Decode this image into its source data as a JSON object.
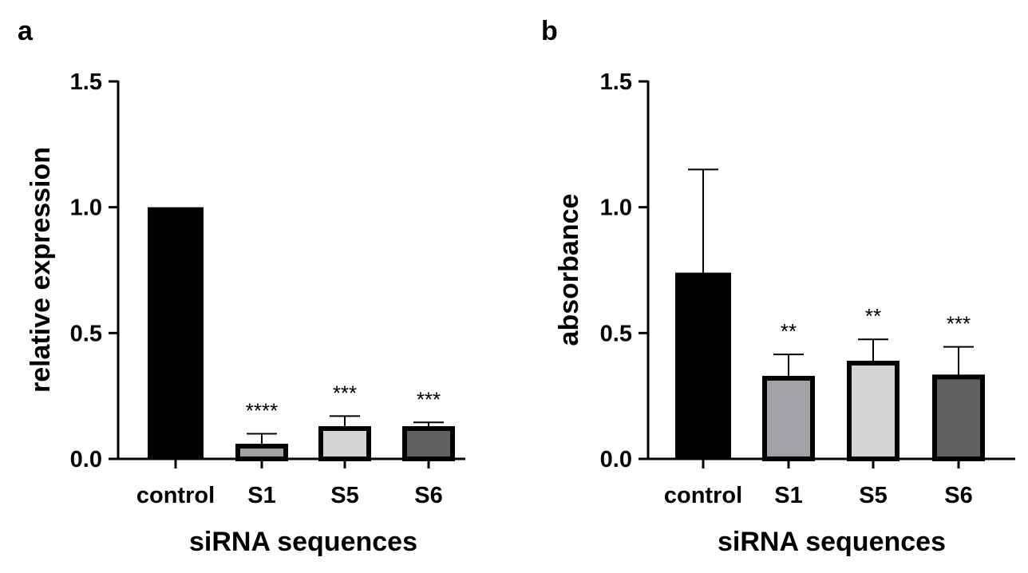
{
  "colors": {
    "control": "#000000",
    "S1": "#a2a2a6",
    "S5": "#d4d4d4",
    "S6": "#606060",
    "bar_outline": "#000000"
  },
  "chart_data": [
    {
      "type": "bar",
      "panel_label": "a",
      "categories": [
        "control",
        "S1",
        "S5",
        "S6"
      ],
      "values": [
        1.0,
        0.06,
        0.13,
        0.13
      ],
      "error_upper": [
        0.0,
        0.04,
        0.04,
        0.015
      ],
      "significance": [
        "",
        "****",
        "***",
        "***"
      ],
      "xlabel": "siRNA sequences",
      "ylabel": "relative expression",
      "ylim": [
        0,
        1.5
      ],
      "yticks": [
        "0.0",
        "0.5",
        "1.0",
        "1.5"
      ],
      "grid": false,
      "legend": "none"
    },
    {
      "type": "bar",
      "panel_label": "b",
      "categories": [
        "control",
        "S1",
        "S5",
        "S6"
      ],
      "values": [
        0.74,
        0.33,
        0.39,
        0.335
      ],
      "error_upper": [
        0.41,
        0.085,
        0.085,
        0.11
      ],
      "significance": [
        "",
        "**",
        "**",
        "***"
      ],
      "xlabel": "siRNA sequences",
      "ylabel": "absorbance",
      "ylim": [
        0,
        1.5
      ],
      "yticks": [
        "0.0",
        "0.5",
        "1.0",
        "1.5"
      ],
      "grid": false,
      "legend": "none"
    }
  ]
}
